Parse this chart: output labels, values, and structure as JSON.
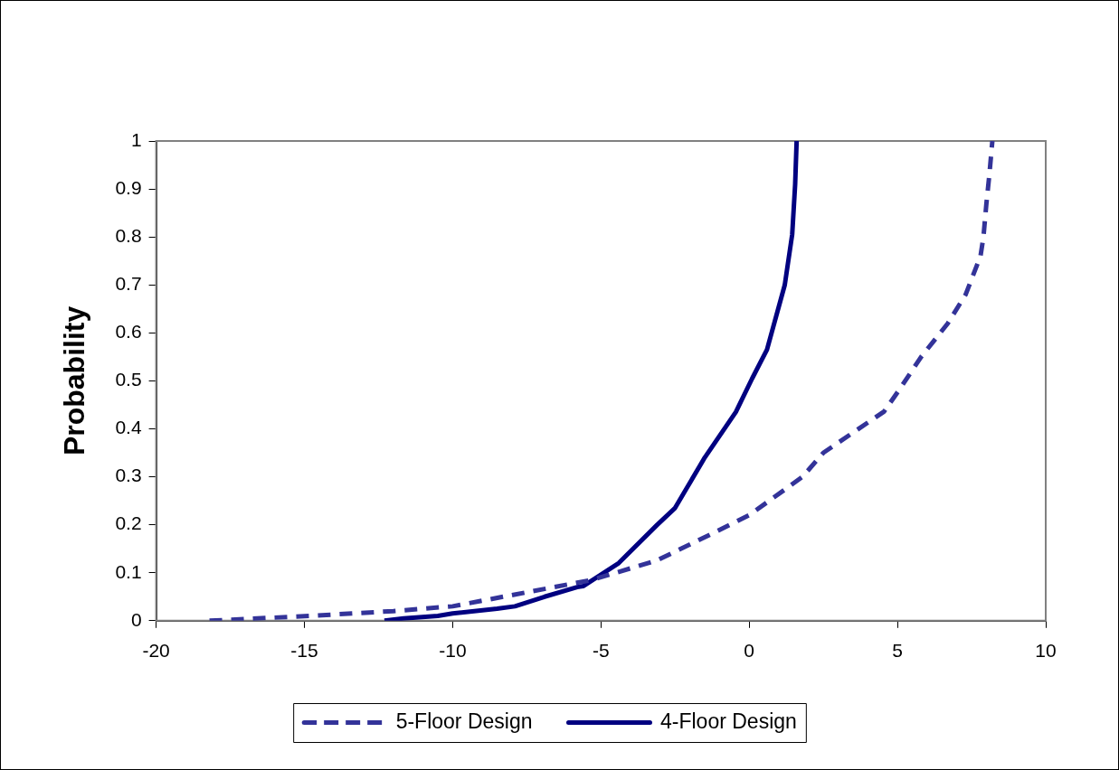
{
  "chart_data": {
    "type": "line",
    "ylabel": "Probability",
    "xlim": [
      -20,
      10
    ],
    "xticks": [
      -20,
      -15,
      -10,
      -5,
      0,
      5,
      10
    ],
    "ylim": [
      0,
      1
    ],
    "yticks": [
      0,
      0.1,
      0.2,
      0.3,
      0.4,
      0.5,
      0.6,
      0.7,
      0.8,
      0.9,
      1
    ],
    "grid": false,
    "legend": "bottom",
    "marker": "none",
    "series": [
      {
        "name": "5-Floor Design",
        "color": "#333399",
        "line_style": "dashed",
        "x": [
          -18.2,
          -14.8,
          -12,
          -10,
          -5.3,
          -3.1,
          -1.3,
          0,
          1.8,
          2.5,
          4.55,
          5.1,
          5.8,
          6.7,
          7.3,
          7.8,
          7.9,
          8.0,
          8.1,
          8.2
        ],
        "values": [
          0,
          0.01,
          0.02,
          0.03,
          0.085,
          0.126,
          0.18,
          0.22,
          0.3,
          0.35,
          0.436,
          0.485,
          0.55,
          0.62,
          0.68,
          0.76,
          0.8,
          0.87,
          0.93,
          1
        ]
      },
      {
        "name": "4-Floor Design",
        "color": "#000080",
        "line_style": "solid",
        "x": [
          -12.3,
          -11.65,
          -10.5,
          -10,
          -8.5,
          -7.9,
          -6.9,
          -5.8,
          -5.6,
          -4.4,
          -3.1,
          -2.5,
          -1.5,
          -0.45,
          0.1,
          0.6,
          1.2,
          1.45,
          1.55,
          1.6
        ],
        "values": [
          0,
          0.005,
          0.01,
          0.015,
          0.025,
          0.03,
          0.05,
          0.07,
          0.072,
          0.12,
          0.2,
          0.235,
          0.34,
          0.435,
          0.505,
          0.565,
          0.7,
          0.805,
          0.91,
          1
        ]
      }
    ]
  }
}
